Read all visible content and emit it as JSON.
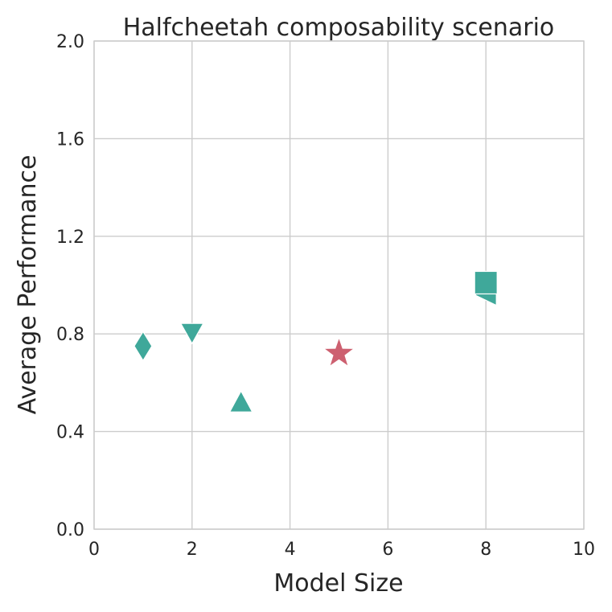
{
  "chart_data": {
    "type": "scatter",
    "title": "Halfcheetah composability scenario",
    "xlabel": "Model Size",
    "ylabel": "Average Performance",
    "xlim": [
      0,
      10
    ],
    "ylim": [
      0,
      2.0
    ],
    "xticks": [
      "0",
      "2",
      "4",
      "6",
      "8",
      "10"
    ],
    "yticks": [
      "0.0",
      "0.4",
      "0.8",
      "1.2",
      "1.6",
      "2.0"
    ],
    "grid": true,
    "legend": "none",
    "colors": {
      "teal": "#3fa89a",
      "red": "#cd6070",
      "grid": "#cccccc",
      "text": "#262626"
    },
    "points": [
      {
        "x": 1,
        "y": 0.75,
        "marker": "diamond",
        "color": "#3fa89a"
      },
      {
        "x": 2,
        "y": 0.8,
        "marker": "triangle-down",
        "color": "#3fa89a"
      },
      {
        "x": 3,
        "y": 0.52,
        "marker": "triangle-up",
        "color": "#3fa89a"
      },
      {
        "x": 5,
        "y": 0.72,
        "marker": "star",
        "color": "#cd6070"
      },
      {
        "x": 8,
        "y": 0.96,
        "marker": "triangle-left",
        "color": "#3fa89a"
      },
      {
        "x": 8,
        "y": 1.01,
        "marker": "square",
        "color": "#3fa89a"
      }
    ]
  }
}
